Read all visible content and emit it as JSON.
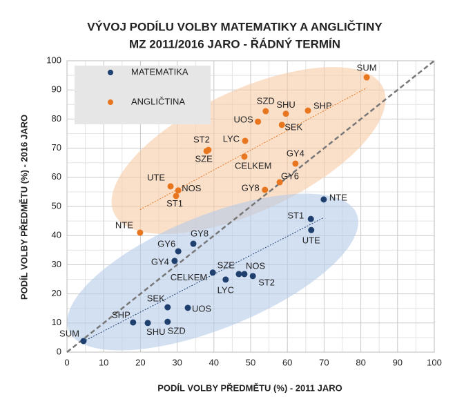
{
  "chart_data": {
    "type": "scatter",
    "title": [
      "VÝVOJ PODÍLU VOLBY MATEMATIKY A ANGLIČTINY",
      "MZ 2011/2016 JARO - ŘÁDNÝ TERMÍN"
    ],
    "x_label": "PODÍL VOLBY PŘEDMĚTU (%) - 2011 JARO",
    "y_label": "PODÍL VOLBY PŘEDMĚTU (%) - 2016 JARO",
    "xlim": [
      0,
      100
    ],
    "ylim": [
      0,
      100
    ],
    "xticks": [
      0,
      10,
      20,
      30,
      40,
      50,
      60,
      70,
      80,
      90,
      100
    ],
    "yticks": [
      0,
      10,
      20,
      30,
      40,
      50,
      60,
      70,
      80,
      90,
      100
    ],
    "grid": true,
    "legend": "upper left",
    "series": [
      {
        "name": "MATEMATIKA",
        "color": "#1f3f6e",
        "labels": [
          "SUM",
          "SHP",
          "SHU",
          "SZD",
          "SEK",
          "UOS",
          "CELKEM",
          "LYC",
          "SZE",
          "NOS",
          "ST2",
          "GY4",
          "GY6",
          "GY8",
          "ST1",
          "UTE",
          "NTE"
        ],
        "x": [
          4.5,
          18,
          22,
          27.4,
          27.4,
          32.9,
          39.7,
          43.2,
          46.8,
          48.3,
          50.6,
          29.3,
          30.3,
          34.4,
          66.4,
          66.5,
          69.9
        ],
        "values": [
          3.8,
          10.2,
          10,
          10.4,
          15.4,
          15.2,
          27.3,
          24.9,
          26.8,
          26.8,
          26.1,
          31.3,
          34.6,
          37.2,
          45.7,
          41.9,
          52.4
        ]
      },
      {
        "name": "ANGLIČTINA",
        "color": "#e8761e",
        "labels": [
          "NTE",
          "ST1",
          "UTE",
          "NOS",
          "SZE",
          "ST2",
          "CELKEM",
          "LYC",
          "UOS",
          "SZD",
          "SHU",
          "SEK",
          "SHP",
          "SUM",
          "GY4",
          "GY6",
          "GY8"
        ],
        "x": [
          19.9,
          29.7,
          28.2,
          30.3,
          38,
          38.5,
          48.3,
          48.5,
          52,
          54.1,
          59.6,
          58.5,
          65.6,
          81.6,
          62.2,
          57.9,
          53.9
        ],
        "values": [
          41,
          53.6,
          56.9,
          55.5,
          69,
          69.4,
          67.1,
          72.5,
          79.1,
          82.7,
          81.8,
          78,
          82.9,
          94.3,
          64.7,
          58.3,
          55.7
        ]
      }
    ]
  }
}
